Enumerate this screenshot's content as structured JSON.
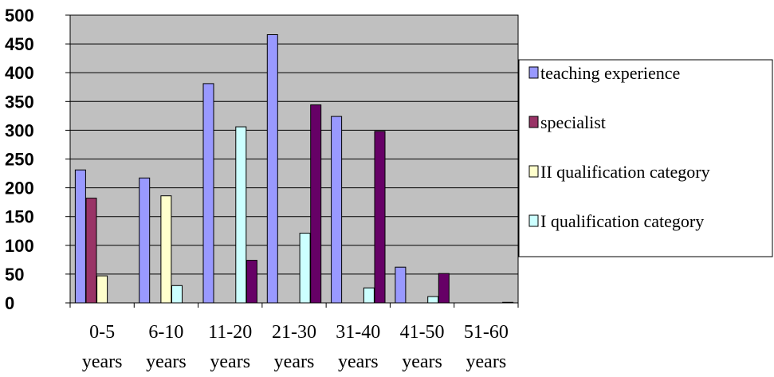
{
  "chart_data": {
    "type": "bar",
    "categories": [
      [
        "0-5",
        "years"
      ],
      [
        "6-10",
        "years"
      ],
      [
        "11-20",
        "years"
      ],
      [
        "21-30",
        "years"
      ],
      [
        "31-40",
        "years"
      ],
      [
        "41-50",
        "years"
      ],
      [
        "51-60",
        "years"
      ]
    ],
    "series": [
      {
        "name": "teaching experience",
        "color": "#9999ff",
        "values": [
          231,
          217,
          381,
          466,
          324,
          62,
          0
        ]
      },
      {
        "name": "specialist",
        "color": "#993366",
        "values": [
          182,
          0,
          0,
          0,
          0,
          0,
          0
        ]
      },
      {
        "name": "II qualification category",
        "color": "#ffffcc",
        "values": [
          47,
          186,
          0,
          0,
          0,
          0,
          0
        ]
      },
      {
        "name": "I qualification category",
        "color": "#ccffff",
        "values": [
          0,
          30,
          306,
          121,
          26,
          11,
          0
        ]
      },
      {
        "name": "",
        "color": "#660066",
        "values": [
          0,
          0,
          74,
          344,
          298,
          51,
          1
        ]
      }
    ],
    "ylim": [
      0,
      500
    ],
    "yticks": [
      0,
      50,
      100,
      150,
      200,
      250,
      300,
      350,
      400,
      450,
      500
    ],
    "grid": true,
    "plot_background": "#c0c0c0",
    "legend_position": "right",
    "title": "",
    "xlabel": "",
    "ylabel": ""
  }
}
